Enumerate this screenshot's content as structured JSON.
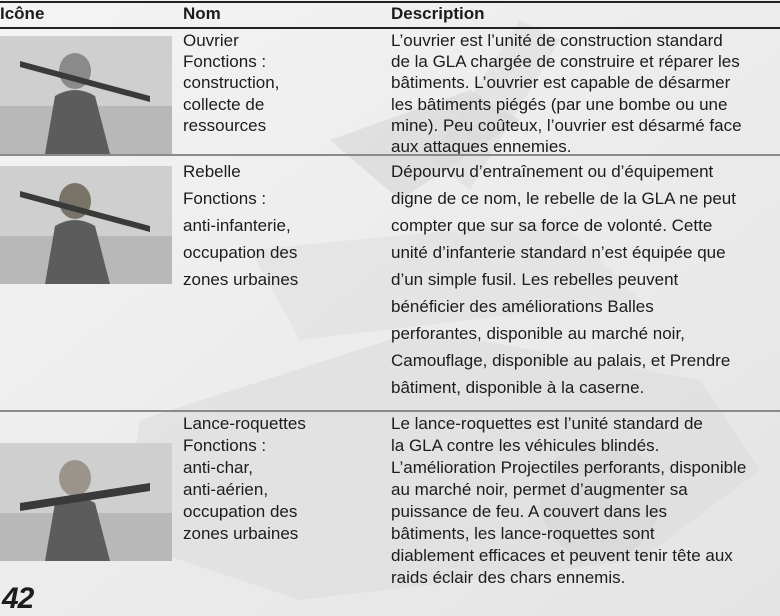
{
  "table": {
    "headers": [
      "Icône",
      "Nom",
      "Description"
    ],
    "rows": [
      {
        "name": "Ouvrier",
        "functions_label": "Fonctions :",
        "functions": [
          "construction,",
          "collecte de",
          "ressources"
        ],
        "description": [
          "L’ouvrier est l’unité de construction standard",
          "de la GLA chargée de construire et réparer les",
          "bâtiments. L’ouvrier est capable de désarmer",
          "les bâtiments piégés (par une bombe ou une",
          "mine). Peu coûteux, l’ouvrier est désarmé face",
          "aux attaques ennemies."
        ]
      },
      {
        "name": "Rebelle",
        "functions_label": "Fonctions :",
        "functions": [
          "anti-infanterie,",
          "occupation des",
          "zones urbaines"
        ],
        "description": [
          "Dépourvu d’entraînement ou d’équipement",
          "digne de ce nom, le rebelle de la GLA ne peut",
          "compter que sur sa force de volonté. Cette",
          "unité d’infanterie standard n’est équipée que",
          "d’un simple fusil. Les rebelles peuvent",
          "bénéficier des améliorations Balles",
          "perforantes, disponible au marché noir,",
          "Camouflage, disponible au palais, et Prendre",
          "bâtiment, disponible à la caserne."
        ]
      },
      {
        "name": "Lance-roquettes",
        "functions_label": "Fonctions :",
        "functions": [
          "anti-char,",
          "anti-aérien,",
          "occupation des",
          "zones urbaines"
        ],
        "description": [
          "Le lance-roquettes est l’unité standard de",
          "la GLA contre les véhicules blindés.",
          "L’amélioration Projectiles perforants, disponible",
          "au marché noir, permet d’augmenter sa",
          "puissance de feu. A couvert dans les",
          "bâtiments, les lance-roquettes sont",
          "diablement efficaces et peuvent tenir tête aux",
          "raids éclair des chars ennemis."
        ]
      }
    ]
  },
  "page_number": "42"
}
